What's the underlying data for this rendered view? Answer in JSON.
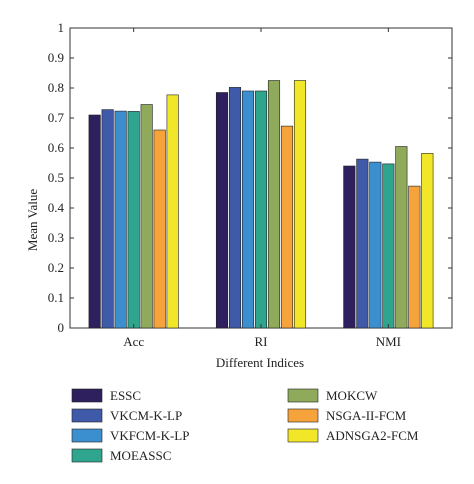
{
  "chart_data": {
    "type": "bar",
    "categories": [
      "Acc",
      "RI",
      "NMI"
    ],
    "xlabel": "Different Indices",
    "ylabel": "Mean Value",
    "ylim": [
      0,
      1
    ],
    "yticks": [
      "0",
      "0.1",
      "0.2",
      "0.3",
      "0.4",
      "0.5",
      "0.6",
      "0.7",
      "0.8",
      "0.9",
      "1"
    ],
    "grid": false,
    "legend_position": "bottom",
    "series": [
      {
        "name": "ESSC",
        "color": "#2e1f5e",
        "values": [
          0.71,
          0.785,
          0.54
        ]
      },
      {
        "name": "VKCM-K-LP",
        "color": "#3f5aa8",
        "values": [
          0.728,
          0.802,
          0.563
        ]
      },
      {
        "name": "VKFCM-K-LP",
        "color": "#3c8fcf",
        "values": [
          0.723,
          0.79,
          0.553
        ]
      },
      {
        "name": "MOEASSC",
        "color": "#2fa58e",
        "values": [
          0.722,
          0.79,
          0.547
        ]
      },
      {
        "name": "MOKCW",
        "color": "#8faa5a",
        "values": [
          0.745,
          0.825,
          0.605
        ]
      },
      {
        "name": "NSGA-II-FCM",
        "color": "#f5a33a",
        "values": [
          0.66,
          0.673,
          0.473
        ]
      },
      {
        "name": "ADNSGA2-FCM",
        "color": "#f2e629",
        "values": [
          0.777,
          0.825,
          0.582
        ]
      }
    ]
  }
}
